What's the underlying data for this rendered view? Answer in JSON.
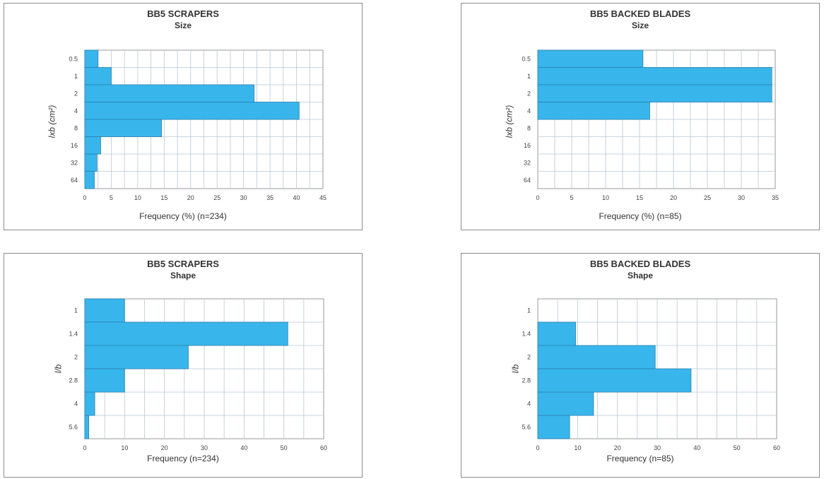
{
  "chart_data": [
    {
      "type": "bar",
      "orientation": "horizontal",
      "title": "BB5 SCRAPERS",
      "subtitle": "Size",
      "xlabel": "Frequency (%) (n=234)",
      "ylabel": "lxb (cm²)",
      "categories": [
        "0.5",
        "1",
        "2",
        "4",
        "8",
        "16",
        "32",
        "64"
      ],
      "values": [
        2.5,
        5,
        32,
        40.5,
        14.5,
        3,
        2.3,
        1.8
      ],
      "xlim": [
        0,
        45
      ],
      "xticks": [
        "0",
        "5",
        "10",
        "15",
        "20",
        "25",
        "30",
        "35",
        "40",
        "45"
      ],
      "grid": true,
      "bar_color": "#38b6ec"
    },
    {
      "type": "bar",
      "orientation": "horizontal",
      "title": "BB5 BACKED BLADES",
      "subtitle": "Size",
      "xlabel": "Frequency (%) (n=85)",
      "ylabel": "lxb (cm²)",
      "categories": [
        "0.5",
        "1",
        "2",
        "4",
        "8",
        "16",
        "32",
        "64"
      ],
      "values": [
        15.5,
        34.5,
        34.5,
        16.5,
        0,
        0,
        0,
        0
      ],
      "xlim": [
        0,
        35
      ],
      "xticks": [
        "0",
        "5",
        "10",
        "15",
        "20",
        "25",
        "30",
        "35"
      ],
      "grid": true,
      "bar_color": "#38b6ec"
    },
    {
      "type": "bar",
      "orientation": "horizontal",
      "title": "BB5 SCRAPERS",
      "subtitle": "Shape",
      "xlabel": "Frequency (n=234)",
      "ylabel": "l/b",
      "categories": [
        "1",
        "1.4",
        "2",
        "2.8",
        "4",
        "5.6"
      ],
      "values": [
        10,
        51,
        26,
        10,
        2.5,
        1
      ],
      "xlim": [
        0,
        60
      ],
      "xticks": [
        "0",
        "10",
        "20",
        "30",
        "40",
        "50",
        "60"
      ],
      "grid": true,
      "bar_color": "#38b6ec"
    },
    {
      "type": "bar",
      "orientation": "horizontal",
      "title": "BB5 BACKED BLADES",
      "subtitle": "Shape",
      "xlabel": "Frequency (n=85)",
      "ylabel": "l/b",
      "categories": [
        "1",
        "1.4",
        "2",
        "2.8",
        "4",
        "5.6"
      ],
      "values": [
        0,
        9.5,
        29.5,
        38.5,
        14,
        8
      ],
      "xlim": [
        0,
        60
      ],
      "xticks": [
        "0",
        "10",
        "20",
        "30",
        "40",
        "50",
        "60"
      ],
      "grid": true,
      "bar_color": "#38b6ec"
    }
  ]
}
